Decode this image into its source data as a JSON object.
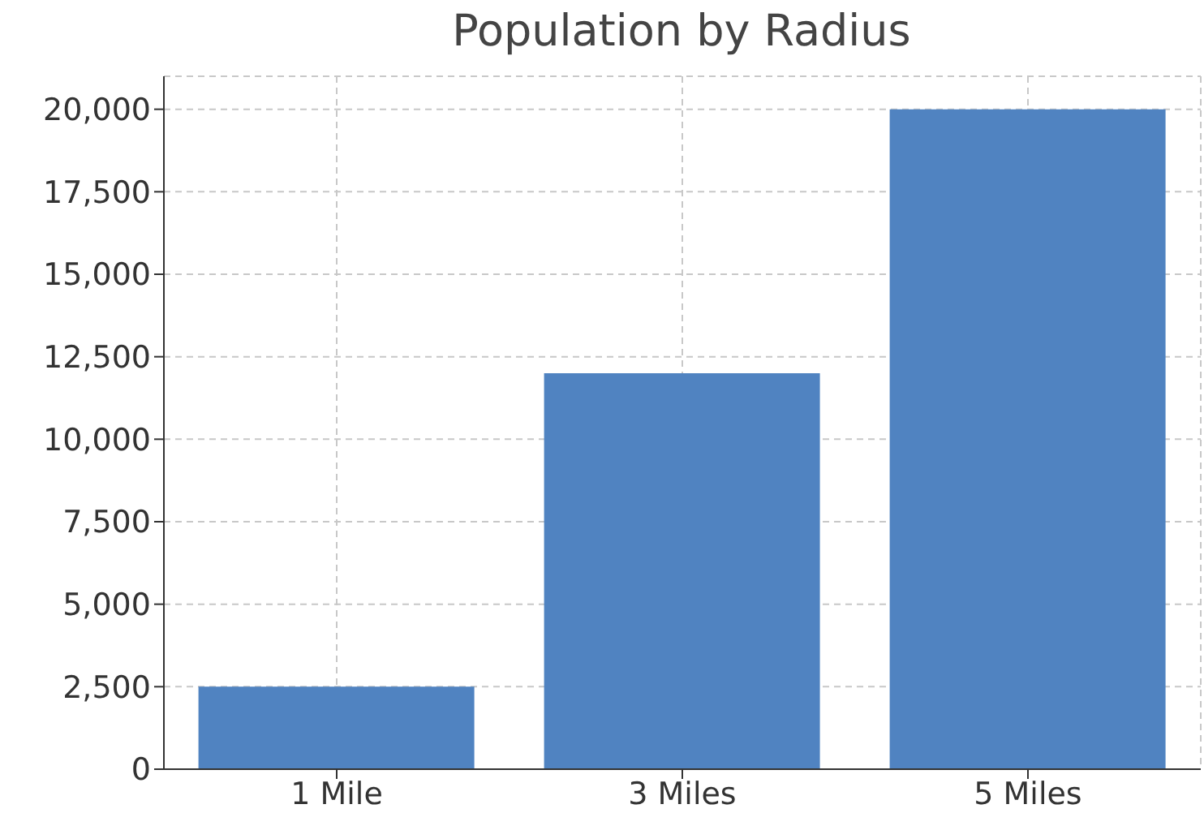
{
  "chart_data": {
    "type": "bar",
    "title": "Population by Radius",
    "categories": [
      "1 Mile",
      "3 Miles",
      "5 Miles"
    ],
    "values": [
      2500,
      12000,
      20000
    ],
    "color": "#5083c1",
    "ylim": [
      0,
      21000
    ],
    "yticks": [
      0,
      {
        "value": 2500,
        "label": "2,500"
      },
      {
        "value": 5000,
        "label": "5,000"
      },
      {
        "value": 7500,
        "label": "7,500"
      },
      {
        "value": 10000,
        "label": "10,000"
      },
      {
        "value": 12500,
        "label": "12,500"
      },
      {
        "value": 15000,
        "label": "15,000"
      },
      {
        "value": 17500,
        "label": "17,500"
      },
      {
        "value": 20000,
        "label": "20,000"
      }
    ],
    "grid": true
  }
}
